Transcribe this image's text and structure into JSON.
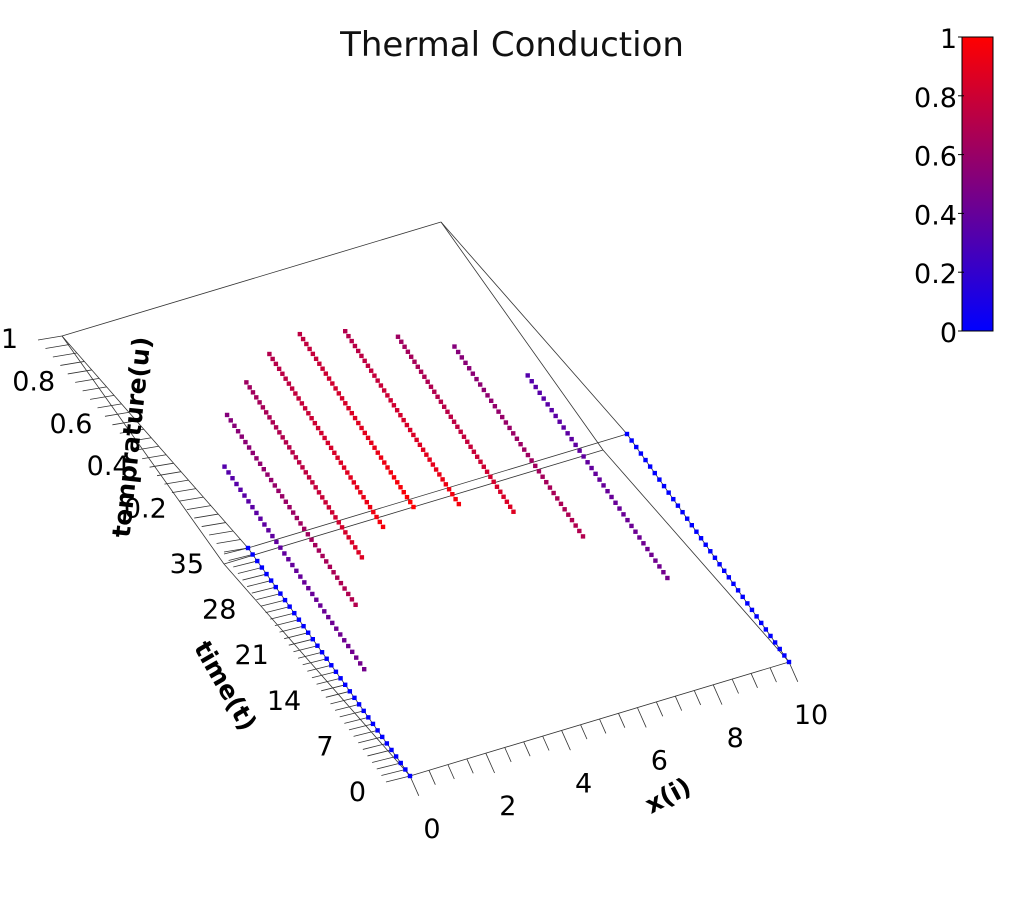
{
  "chart_data": {
    "type": "scatter",
    "subtype": "3d-scatter",
    "title": "Thermal Conduction",
    "xlabel": "x(i)",
    "ylabel": "time(t)",
    "zlabel": "temprature(u)",
    "xlim": [
      0,
      10
    ],
    "ylim": [
      0,
      35
    ],
    "zlim": [
      0,
      1
    ],
    "x_ticks": [
      "0",
      "2",
      "4",
      "6",
      "8",
      "10"
    ],
    "y_ticks": [
      "0",
      "7",
      "14",
      "21",
      "28",
      "35"
    ],
    "z_ticks": [
      "0.2",
      "0.4",
      "0.6",
      "0.8",
      "1"
    ],
    "grid": false,
    "colorbar": {
      "label": "",
      "range": [
        0,
        1
      ],
      "ticks": [
        "0",
        "0.2",
        "0.4",
        "0.6",
        "0.8",
        "1"
      ],
      "colors": [
        "#0000ff",
        "#ff0000"
      ],
      "placement": "top-right"
    },
    "marker_color_by": "temperature",
    "series_note": "each line is one x position, points along time t = 0..35",
    "series": [
      {
        "x": 0,
        "t_range": [
          0,
          35
        ],
        "u_start": 0.0,
        "u_end": 0.0
      },
      {
        "x": 1,
        "t_range": [
          0,
          35
        ],
        "u_start": 0.45,
        "u_end": 0.33
      },
      {
        "x": 2,
        "t_range": [
          0,
          35
        ],
        "u_start": 0.7,
        "u_end": 0.52
      },
      {
        "x": 3,
        "t_range": [
          0,
          35
        ],
        "u_start": 0.87,
        "u_end": 0.62
      },
      {
        "x": 4,
        "t_range": [
          0,
          35
        ],
        "u_start": 0.96,
        "u_end": 0.7
      },
      {
        "x": 5,
        "t_range": [
          0,
          35
        ],
        "u_start": 1.0,
        "u_end": 0.74
      },
      {
        "x": 6,
        "t_range": [
          0,
          35
        ],
        "u_start": 0.96,
        "u_end": 0.7
      },
      {
        "x": 7,
        "t_range": [
          0,
          35
        ],
        "u_start": 0.87,
        "u_end": 0.62
      },
      {
        "x": 8,
        "t_range": [
          0,
          35
        ],
        "u_start": 0.7,
        "u_end": 0.52
      },
      {
        "x": 9,
        "t_range": [
          0,
          35
        ],
        "u_start": 0.45,
        "u_end": 0.33
      },
      {
        "x": 10,
        "t_range": [
          0,
          35
        ],
        "u_start": 0.0,
        "u_end": 0.0
      }
    ]
  }
}
